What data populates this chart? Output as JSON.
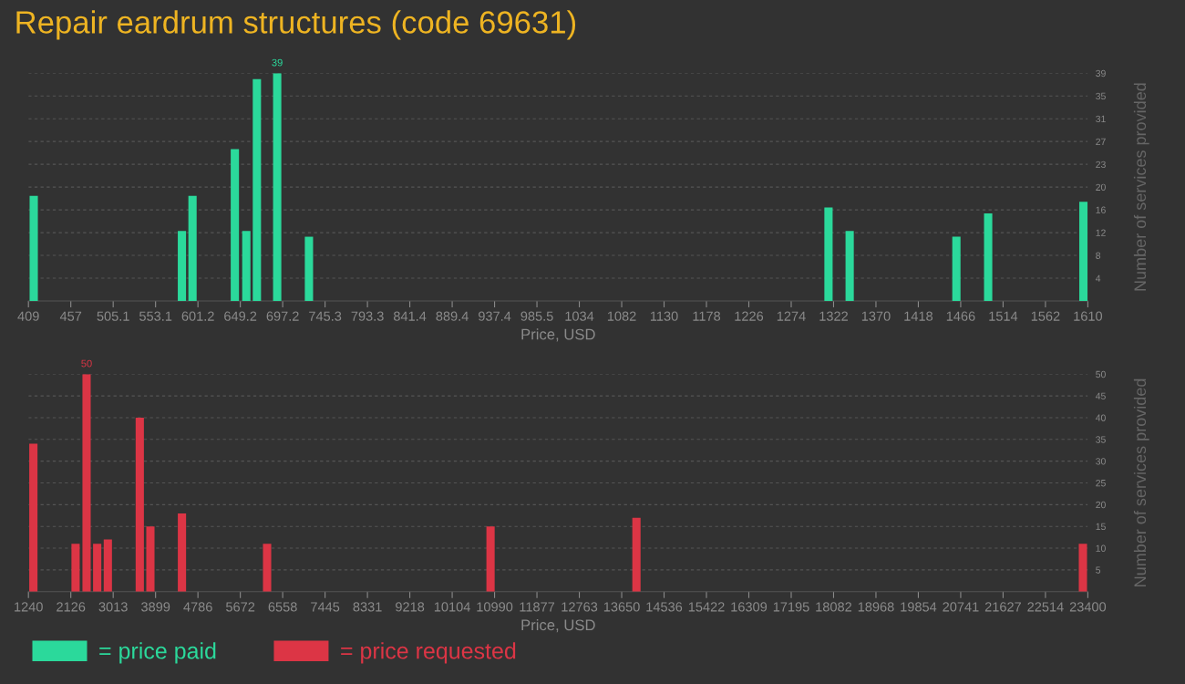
{
  "chart_data": [
    {
      "type": "bar",
      "title": "Repair eardrum structures (code 69631)",
      "xlabel": "Price, USD",
      "ylabel": "Number of services provided",
      "x": [
        415,
        583,
        595,
        643,
        656,
        668,
        691,
        727,
        1316,
        1340,
        1461,
        1497,
        1605
      ],
      "series": [
        {
          "name": "= price paid",
          "color": "#2bd99b",
          "values": [
            18,
            12,
            18,
            26,
            12,
            38,
            39,
            11,
            16,
            12,
            11,
            15,
            17
          ],
          "value_labels": [
            null,
            null,
            null,
            null,
            null,
            null,
            "39",
            null,
            null,
            null,
            null,
            null,
            null
          ]
        }
      ],
      "xlim": [
        409,
        1610
      ],
      "xticks": [
        {
          "value": 409,
          "label": "409"
        },
        {
          "value": 457.04,
          "label": "457"
        },
        {
          "value": 505.08,
          "label": "505.1"
        },
        {
          "value": 553.12,
          "label": "553.1"
        },
        {
          "value": 601.16,
          "label": "601.2"
        },
        {
          "value": 649.2,
          "label": "649.2"
        },
        {
          "value": 697.24,
          "label": "697.2"
        },
        {
          "value": 745.28,
          "label": "745.3"
        },
        {
          "value": 793.32,
          "label": "793.3"
        },
        {
          "value": 841.36,
          "label": "841.4"
        },
        {
          "value": 889.4,
          "label": "889.4"
        },
        {
          "value": 937.44,
          "label": "937.4"
        },
        {
          "value": 985.48,
          "label": "985.5"
        },
        {
          "value": 1033.52,
          "label": "1034"
        },
        {
          "value": 1081.56,
          "label": "1082"
        },
        {
          "value": 1129.6,
          "label": "1130"
        },
        {
          "value": 1177.64,
          "label": "1178"
        },
        {
          "value": 1225.68,
          "label": "1226"
        },
        {
          "value": 1273.72,
          "label": "1274"
        },
        {
          "value": 1321.76,
          "label": "1322"
        },
        {
          "value": 1369.8,
          "label": "1370"
        },
        {
          "value": 1417.84,
          "label": "1418"
        },
        {
          "value": 1465.88,
          "label": "1466"
        },
        {
          "value": 1513.92,
          "label": "1514"
        },
        {
          "value": 1561.96,
          "label": "1562"
        },
        {
          "value": 1610,
          "label": "1610"
        }
      ],
      "ylim": [
        0,
        39
      ],
      "yticks": [
        {
          "value": 3.9,
          "label": "4"
        },
        {
          "value": 7.8,
          "label": "8"
        },
        {
          "value": 11.7,
          "label": "12"
        },
        {
          "value": 15.6,
          "label": "16"
        },
        {
          "value": 19.5,
          "label": "20"
        },
        {
          "value": 23.4,
          "label": "23"
        },
        {
          "value": 27.3,
          "label": "27"
        },
        {
          "value": 31.2,
          "label": "31"
        },
        {
          "value": 35.1,
          "label": "35"
        },
        {
          "value": 39,
          "label": "39"
        }
      ],
      "grid": "y",
      "legend": "bottom left"
    },
    {
      "type": "bar",
      "xlabel": "Price, USD",
      "ylabel": "Number of services provided",
      "x": [
        1343,
        2226,
        2456,
        2678,
        2901,
        3569,
        3791,
        4451,
        6232,
        10906,
        13958,
        23297
      ],
      "series": [
        {
          "name": "= price requested",
          "color": "#dc3545",
          "values": [
            34,
            11,
            50,
            11,
            12,
            40,
            15,
            18,
            11,
            15,
            17,
            11
          ],
          "value_labels": [
            null,
            null,
            "50",
            null,
            null,
            null,
            null,
            null,
            null,
            null,
            null,
            null
          ]
        }
      ],
      "xlim": [
        1240,
        23400
      ],
      "xticks": [
        {
          "value": 1240,
          "label": "1240"
        },
        {
          "value": 2126.4,
          "label": "2126"
        },
        {
          "value": 3012.8,
          "label": "3013"
        },
        {
          "value": 3899.2,
          "label": "3899"
        },
        {
          "value": 4785.6,
          "label": "4786"
        },
        {
          "value": 5672,
          "label": "5672"
        },
        {
          "value": 6558.4,
          "label": "6558"
        },
        {
          "value": 7444.8,
          "label": "7445"
        },
        {
          "value": 8331.2,
          "label": "8331"
        },
        {
          "value": 9217.6,
          "label": "9218"
        },
        {
          "value": 10104,
          "label": "10104"
        },
        {
          "value": 10990.4,
          "label": "10990"
        },
        {
          "value": 11876.8,
          "label": "11877"
        },
        {
          "value": 12763.2,
          "label": "12763"
        },
        {
          "value": 13649.6,
          "label": "13650"
        },
        {
          "value": 14536,
          "label": "14536"
        },
        {
          "value": 15422.4,
          "label": "15422"
        },
        {
          "value": 16308.8,
          "label": "16309"
        },
        {
          "value": 17195.2,
          "label": "17195"
        },
        {
          "value": 18081.6,
          "label": "18082"
        },
        {
          "value": 18968,
          "label": "18968"
        },
        {
          "value": 19854.4,
          "label": "19854"
        },
        {
          "value": 20740.8,
          "label": "20741"
        },
        {
          "value": 21627.2,
          "label": "21627"
        },
        {
          "value": 22513.6,
          "label": "22514"
        },
        {
          "value": 23400,
          "label": "23400"
        }
      ],
      "ylim": [
        0,
        50
      ],
      "yticks": [
        5,
        10,
        15,
        20,
        25,
        30,
        35,
        40,
        45,
        50
      ],
      "grid": "y",
      "legend": "bottom left"
    }
  ]
}
